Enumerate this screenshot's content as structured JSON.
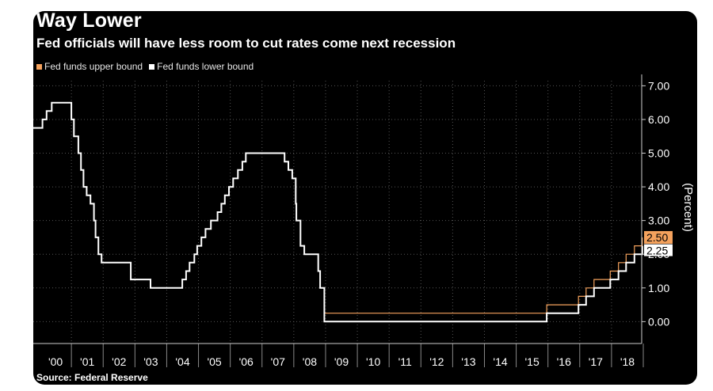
{
  "title": "Way Lower",
  "subtitle": "Fed officials will have less room to cut rates come next recession",
  "source": "Source: Federal Reserve",
  "chart_data": {
    "type": "line",
    "title": "Way Lower",
    "subtitle": "Fed officials will have less room to cut rates come next recession",
    "ylabel": "(Percent)",
    "xlabel": "",
    "xlim": [
      1999.8,
      2018.95
    ],
    "ylim": [
      -0.65,
      7.15
    ],
    "yticks": [
      0,
      1,
      2,
      3,
      4,
      5,
      6,
      7
    ],
    "ytick_labels": [
      "0.00",
      "1.00",
      "2.00",
      "3.00",
      "4.00",
      "5.00",
      "6.00",
      "7.00"
    ],
    "xtick_labels": [
      "'00",
      "'01",
      "'02",
      "'03",
      "'04",
      "'05",
      "'06",
      "'07",
      "'08",
      "'09",
      "'10",
      "'11",
      "'12",
      "'13",
      "'14",
      "'15",
      "'16",
      "'17",
      "'18"
    ],
    "grid": true,
    "legend": "top-left",
    "colors": {
      "upper": "#f5a25d",
      "lower": "#ffffff",
      "background": "#000000",
      "grid": "#555555"
    },
    "series": [
      {
        "name": "Fed funds upper bound",
        "color": "#f5a25d",
        "last_value_label": "2.50",
        "x": [
          1999.8,
          2000.09,
          2000.22,
          2000.38,
          2001.0,
          2001.08,
          2001.22,
          2001.3,
          2001.38,
          2001.48,
          2001.6,
          2001.71,
          2001.76,
          2001.85,
          2001.95,
          2002.87,
          2003.49,
          2004.49,
          2004.61,
          2004.72,
          2004.87,
          2004.96,
          2005.09,
          2005.22,
          2005.39,
          2005.6,
          2005.72,
          2005.83,
          2005.96,
          2006.09,
          2006.24,
          2006.38,
          2006.49,
          2007.71,
          2007.83,
          2007.95,
          2008.06,
          2008.08,
          2008.21,
          2008.33,
          2008.77,
          2008.83,
          2008.96,
          2015.96,
          2016.96,
          2017.2,
          2017.45,
          2017.96,
          2018.22,
          2018.46,
          2018.72,
          2018.97
        ],
        "y": [
          5.75,
          6.0,
          6.25,
          6.5,
          6.0,
          5.5,
          5.0,
          4.5,
          4.0,
          3.75,
          3.5,
          3.0,
          2.5,
          2.0,
          1.75,
          1.25,
          1.0,
          1.25,
          1.5,
          1.75,
          2.0,
          2.25,
          2.5,
          2.75,
          3.0,
          3.25,
          3.5,
          3.75,
          4.0,
          4.25,
          4.5,
          4.75,
          5.0,
          4.75,
          4.5,
          4.25,
          3.5,
          3.0,
          2.25,
          2.0,
          1.5,
          1.0,
          0.25,
          0.5,
          0.75,
          1.0,
          1.25,
          1.5,
          1.75,
          2.0,
          2.25,
          2.5
        ]
      },
      {
        "name": "Fed funds lower bound",
        "color": "#ffffff",
        "last_value_label": "2.25",
        "x": [
          1999.8,
          2000.09,
          2000.22,
          2000.38,
          2001.0,
          2001.08,
          2001.22,
          2001.3,
          2001.38,
          2001.48,
          2001.6,
          2001.71,
          2001.76,
          2001.85,
          2001.95,
          2002.87,
          2003.49,
          2004.49,
          2004.61,
          2004.72,
          2004.87,
          2004.96,
          2005.09,
          2005.22,
          2005.39,
          2005.6,
          2005.72,
          2005.83,
          2005.96,
          2006.09,
          2006.24,
          2006.38,
          2006.49,
          2007.71,
          2007.83,
          2007.95,
          2008.06,
          2008.08,
          2008.21,
          2008.33,
          2008.77,
          2008.83,
          2008.96,
          2015.96,
          2016.96,
          2017.2,
          2017.45,
          2017.96,
          2018.22,
          2018.46,
          2018.72,
          2018.97
        ],
        "y": [
          5.75,
          6.0,
          6.25,
          6.5,
          6.0,
          5.5,
          5.0,
          4.5,
          4.0,
          3.75,
          3.5,
          3.0,
          2.5,
          2.0,
          1.75,
          1.25,
          1.0,
          1.25,
          1.5,
          1.75,
          2.0,
          2.25,
          2.5,
          2.75,
          3.0,
          3.25,
          3.5,
          3.75,
          4.0,
          4.25,
          4.5,
          4.75,
          5.0,
          4.75,
          4.5,
          4.25,
          3.5,
          3.0,
          2.25,
          2.0,
          1.5,
          1.0,
          0.0,
          0.25,
          0.5,
          0.75,
          1.0,
          1.25,
          1.5,
          1.75,
          2.0,
          2.25
        ]
      }
    ]
  }
}
